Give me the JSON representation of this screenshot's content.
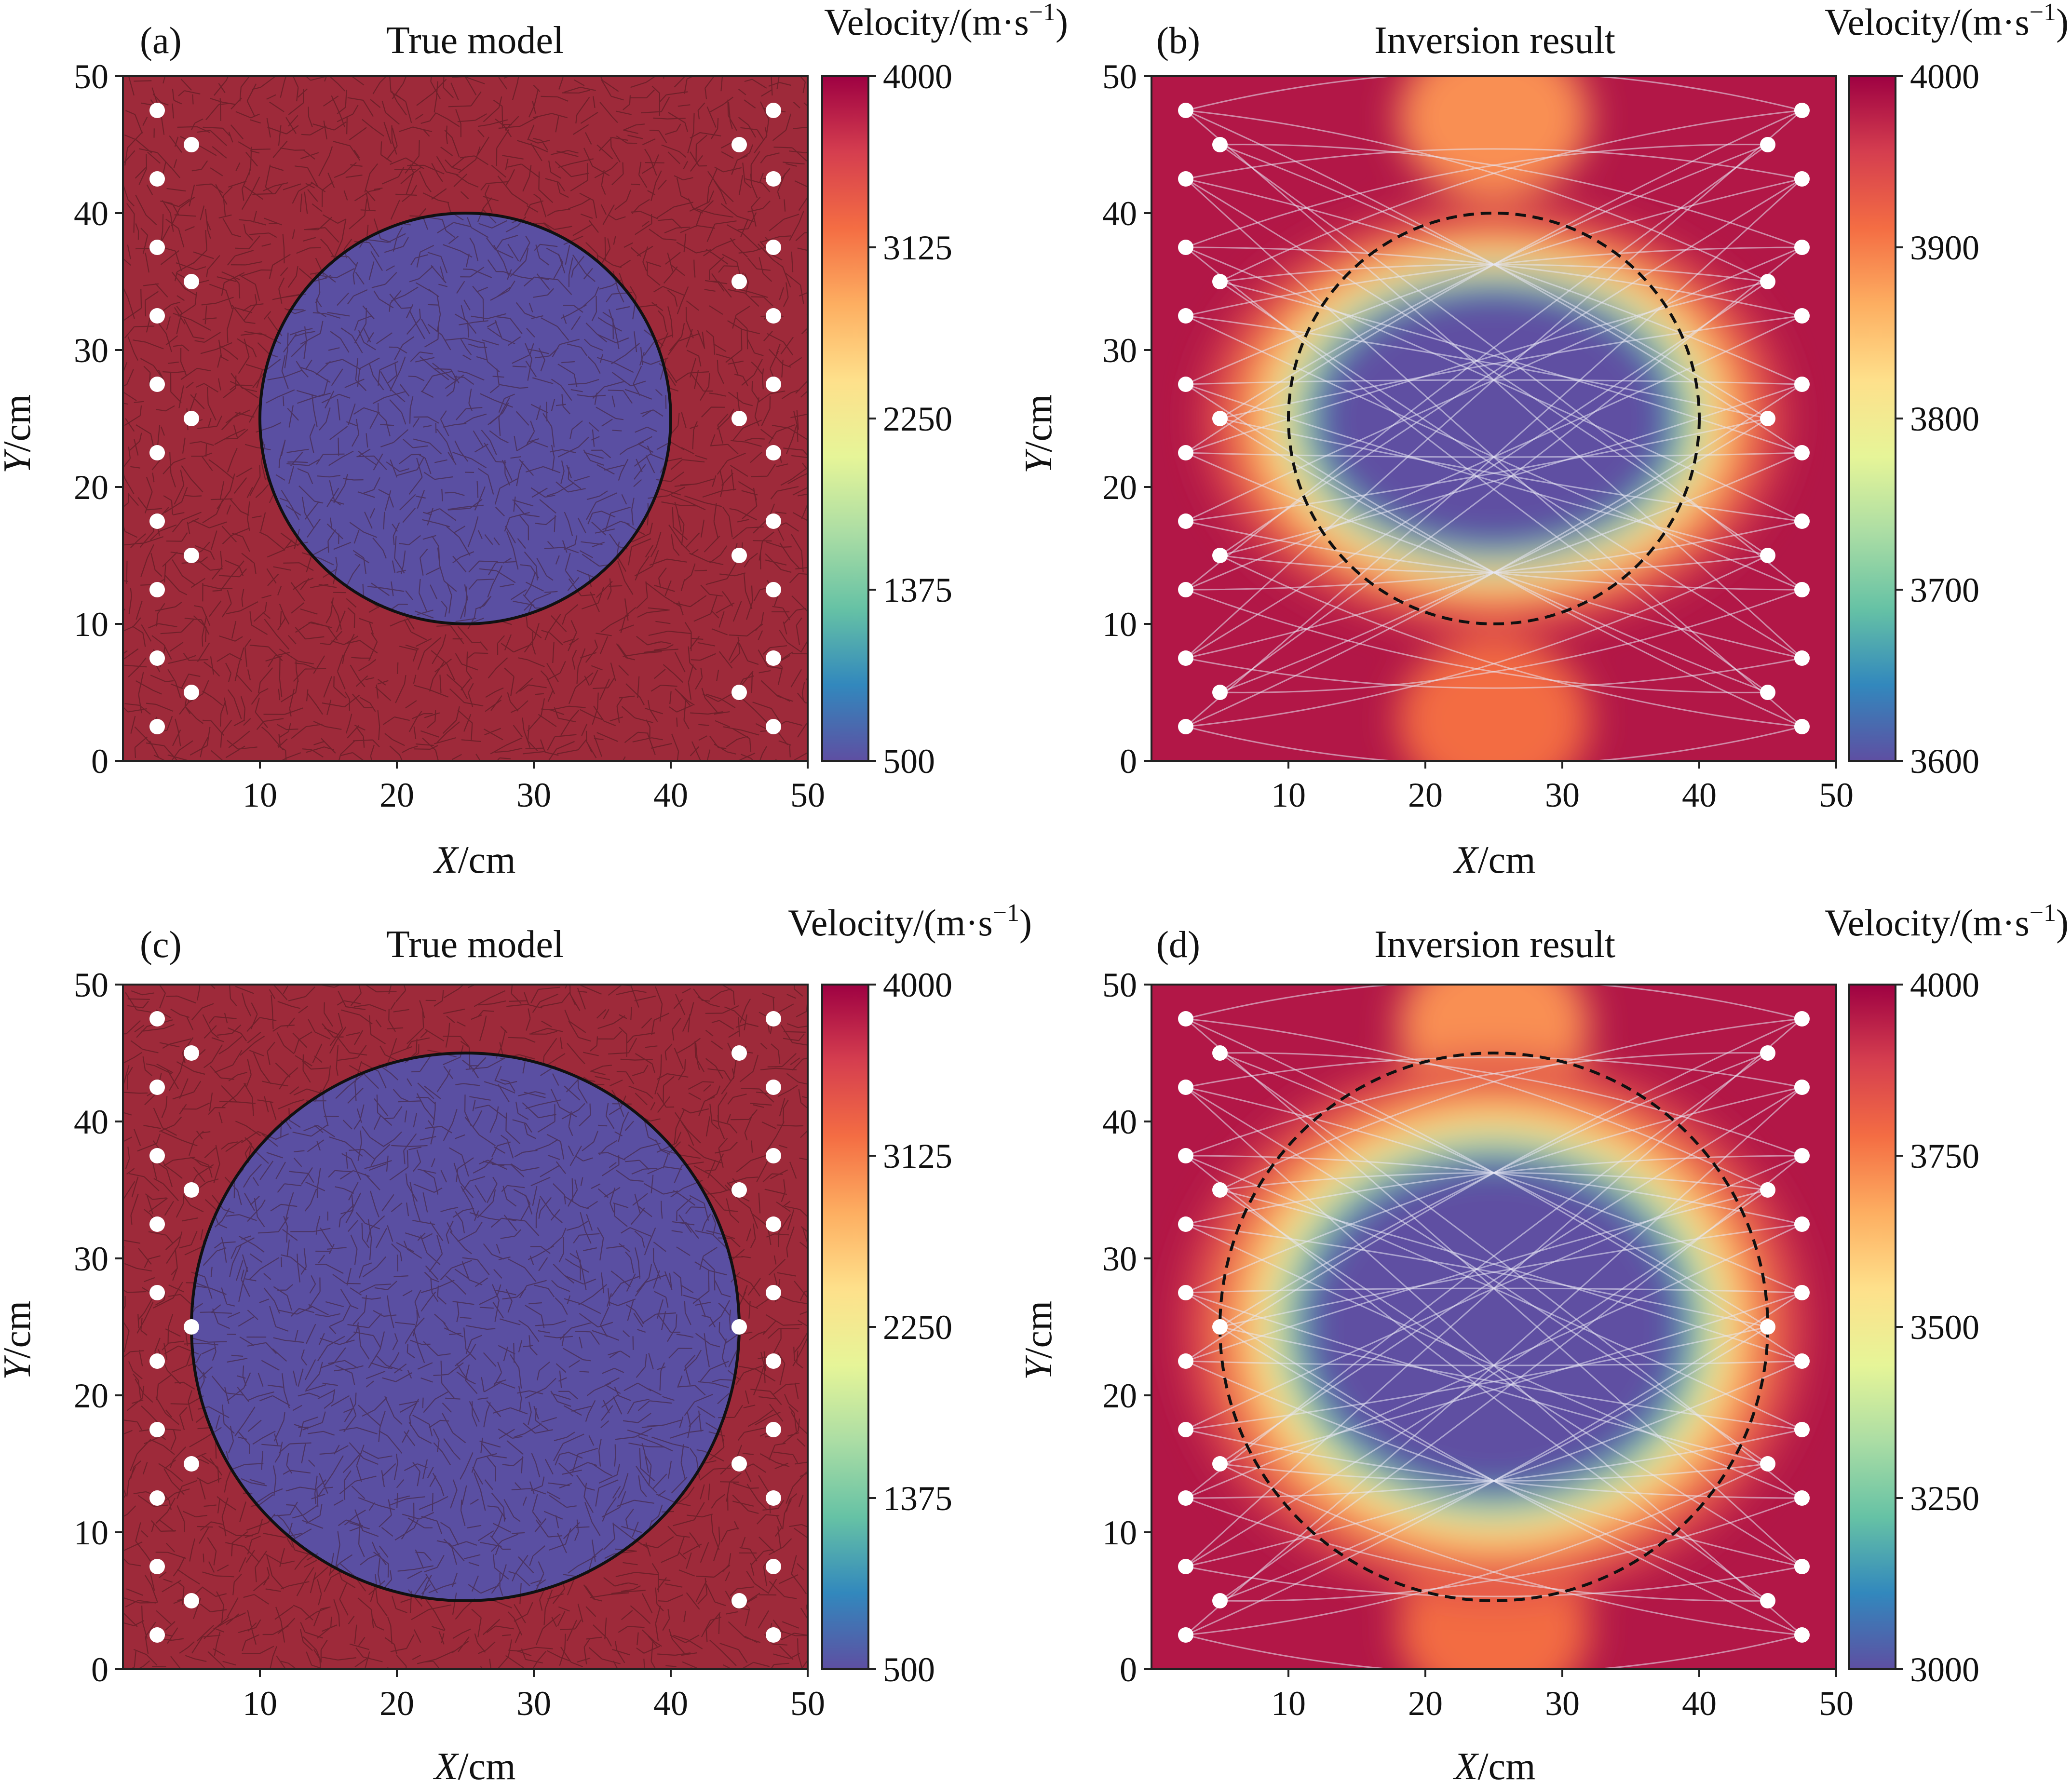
{
  "colors": {
    "background_max": "#9e2a3a",
    "inclusion_min": "#5a4fa2",
    "spectral": [
      "#5e4fa2",
      "#3288bd",
      "#66c2a5",
      "#abdda4",
      "#e6f598",
      "#fee08b",
      "#fdae61",
      "#f46d43",
      "#d53e4f",
      "#9e0142"
    ],
    "sensor": "#ffffff",
    "ray": "#e8e8f4",
    "mesh": "#3a1418",
    "outline": "#111111"
  },
  "chart_data": [
    {
      "type": "heatmap",
      "panel_label": "(a)",
      "title": "True model",
      "xlabel_italic": "X",
      "xlabel_unit": "/cm",
      "ylabel_italic": "Y",
      "ylabel_unit": "/cm",
      "xlim": [
        0,
        50
      ],
      "ylim": [
        0,
        50
      ],
      "xticks": [
        "10",
        "20",
        "30",
        "40",
        "50"
      ],
      "yticks": [
        "0",
        "10",
        "20",
        "30",
        "40",
        "50"
      ],
      "colorbar": {
        "title": "Velocity/(m·s",
        "title_sup": "−1",
        "title_close": ")",
        "range": [
          500,
          4000
        ],
        "ticks": [
          "4000",
          "3125",
          "2250",
          "1375",
          "500"
        ]
      },
      "model": "true",
      "inclusion": {
        "center_x": 25,
        "center_y": 25,
        "radius": 15,
        "velocity": 500
      },
      "background_velocity": 4000,
      "sensors_left": [
        [
          2.5,
          2.5
        ],
        [
          5,
          5
        ],
        [
          2.5,
          7.5
        ],
        [
          2.5,
          12.5
        ],
        [
          5,
          15
        ],
        [
          2.5,
          17.5
        ],
        [
          2.5,
          22.5
        ],
        [
          5,
          25
        ],
        [
          2.5,
          27.5
        ],
        [
          2.5,
          32.5
        ],
        [
          5,
          35
        ],
        [
          2.5,
          37.5
        ],
        [
          2.5,
          42.5
        ],
        [
          5,
          45
        ],
        [
          2.5,
          47.5
        ]
      ],
      "sensors_right": [
        [
          47.5,
          2.5
        ],
        [
          45,
          5
        ],
        [
          47.5,
          7.5
        ],
        [
          47.5,
          12.5
        ],
        [
          45,
          15
        ],
        [
          47.5,
          17.5
        ],
        [
          47.5,
          22.5
        ],
        [
          45,
          25
        ],
        [
          47.5,
          27.5
        ],
        [
          47.5,
          32.5
        ],
        [
          45,
          35
        ],
        [
          47.5,
          37.5
        ],
        [
          47.5,
          42.5
        ],
        [
          45,
          45
        ],
        [
          47.5,
          47.5
        ]
      ],
      "grid": false
    },
    {
      "type": "heatmap",
      "panel_label": "(b)",
      "title": "Inversion result",
      "xlabel_italic": "X",
      "xlabel_unit": "/cm",
      "ylabel_italic": "Y",
      "ylabel_unit": "/cm",
      "xlim": [
        0,
        50
      ],
      "ylim": [
        0,
        50
      ],
      "xticks": [
        "10",
        "20",
        "30",
        "40",
        "50"
      ],
      "yticks": [
        "0",
        "10",
        "20",
        "30",
        "40",
        "50"
      ],
      "colorbar": {
        "title": "Velocity/(m·s",
        "title_sup": "−1",
        "title_close": ")",
        "range": [
          3600,
          4000
        ],
        "ticks": [
          "4000",
          "3900",
          "3800",
          "3700",
          "3600"
        ]
      },
      "model": "inversion",
      "inclusion_outline": {
        "center_x": 25,
        "center_y": 25,
        "radius": 15,
        "style": "dashed"
      },
      "anomaly": {
        "center_x": 25,
        "center_y": 25,
        "radius_x": 15,
        "radius_y": 11
      },
      "sensors_left": [
        [
          2.5,
          2.5
        ],
        [
          5,
          5
        ],
        [
          2.5,
          7.5
        ],
        [
          2.5,
          12.5
        ],
        [
          5,
          15
        ],
        [
          2.5,
          17.5
        ],
        [
          2.5,
          22.5
        ],
        [
          5,
          25
        ],
        [
          2.5,
          27.5
        ],
        [
          2.5,
          32.5
        ],
        [
          5,
          35
        ],
        [
          2.5,
          37.5
        ],
        [
          2.5,
          42.5
        ],
        [
          5,
          45
        ],
        [
          2.5,
          47.5
        ]
      ],
      "sensors_right": [
        [
          47.5,
          2.5
        ],
        [
          45,
          5
        ],
        [
          47.5,
          7.5
        ],
        [
          47.5,
          12.5
        ],
        [
          45,
          15
        ],
        [
          47.5,
          17.5
        ],
        [
          47.5,
          22.5
        ],
        [
          45,
          25
        ],
        [
          47.5,
          27.5
        ],
        [
          47.5,
          32.5
        ],
        [
          45,
          35
        ],
        [
          47.5,
          37.5
        ],
        [
          47.5,
          42.5
        ],
        [
          45,
          45
        ],
        [
          47.5,
          47.5
        ]
      ],
      "grid": false
    },
    {
      "type": "heatmap",
      "panel_label": "(c)",
      "title": "True model",
      "xlabel_italic": "X",
      "xlabel_unit": "/cm",
      "ylabel_italic": "Y",
      "ylabel_unit": "/cm",
      "xlim": [
        0,
        50
      ],
      "ylim": [
        0,
        50
      ],
      "xticks": [
        "10",
        "20",
        "30",
        "40",
        "50"
      ],
      "yticks": [
        "0",
        "10",
        "20",
        "30",
        "40",
        "50"
      ],
      "colorbar": {
        "title": "Velocity/(m·s",
        "title_sup": "−1",
        "title_close": ")",
        "range": [
          500,
          4000
        ],
        "ticks": [
          "4000",
          "3125",
          "2250",
          "1375",
          "500"
        ]
      },
      "model": "true",
      "inclusion": {
        "center_x": 25,
        "center_y": 25,
        "radius": 20,
        "velocity": 500
      },
      "background_velocity": 4000,
      "sensors_left": [
        [
          2.5,
          2.5
        ],
        [
          5,
          5
        ],
        [
          2.5,
          7.5
        ],
        [
          2.5,
          12.5
        ],
        [
          5,
          15
        ],
        [
          2.5,
          17.5
        ],
        [
          2.5,
          22.5
        ],
        [
          5,
          25
        ],
        [
          2.5,
          27.5
        ],
        [
          2.5,
          32.5
        ],
        [
          5,
          35
        ],
        [
          2.5,
          37.5
        ],
        [
          2.5,
          42.5
        ],
        [
          5,
          45
        ],
        [
          2.5,
          47.5
        ]
      ],
      "sensors_right": [
        [
          47.5,
          2.5
        ],
        [
          45,
          5
        ],
        [
          47.5,
          7.5
        ],
        [
          47.5,
          12.5
        ],
        [
          45,
          15
        ],
        [
          47.5,
          17.5
        ],
        [
          47.5,
          22.5
        ],
        [
          45,
          25
        ],
        [
          47.5,
          27.5
        ],
        [
          47.5,
          32.5
        ],
        [
          45,
          35
        ],
        [
          47.5,
          37.5
        ],
        [
          47.5,
          42.5
        ],
        [
          45,
          45
        ],
        [
          47.5,
          47.5
        ]
      ],
      "grid": false
    },
    {
      "type": "heatmap",
      "panel_label": "(d)",
      "title": "Inversion result",
      "xlabel_italic": "X",
      "xlabel_unit": "/cm",
      "ylabel_italic": "Y",
      "ylabel_unit": "/cm",
      "xlim": [
        0,
        50
      ],
      "ylim": [
        0,
        50
      ],
      "xticks": [
        "10",
        "20",
        "30",
        "40",
        "50"
      ],
      "yticks": [
        "0",
        "10",
        "20",
        "30",
        "40",
        "50"
      ],
      "colorbar": {
        "title": "Velocity/(m·s",
        "title_sup": "−1",
        "title_close": ")",
        "range": [
          3000,
          4000
        ],
        "ticks": [
          "4000",
          "3750",
          "3500",
          "3250",
          "3000"
        ]
      },
      "model": "inversion",
      "inclusion_outline": {
        "center_x": 25,
        "center_y": 25,
        "radius": 20,
        "style": "dashed"
      },
      "anomaly": {
        "center_x": 25,
        "center_y": 25,
        "radius_x": 16,
        "radius_y": 14
      },
      "sensors_left": [
        [
          2.5,
          2.5
        ],
        [
          5,
          5
        ],
        [
          2.5,
          7.5
        ],
        [
          2.5,
          12.5
        ],
        [
          5,
          15
        ],
        [
          2.5,
          17.5
        ],
        [
          2.5,
          22.5
        ],
        [
          5,
          25
        ],
        [
          2.5,
          27.5
        ],
        [
          2.5,
          32.5
        ],
        [
          5,
          35
        ],
        [
          2.5,
          37.5
        ],
        [
          2.5,
          42.5
        ],
        [
          5,
          45
        ],
        [
          2.5,
          47.5
        ]
      ],
      "sensors_right": [
        [
          47.5,
          2.5
        ],
        [
          45,
          5
        ],
        [
          47.5,
          7.5
        ],
        [
          47.5,
          12.5
        ],
        [
          45,
          15
        ],
        [
          47.5,
          17.5
        ],
        [
          47.5,
          22.5
        ],
        [
          45,
          25
        ],
        [
          47.5,
          27.5
        ],
        [
          47.5,
          32.5
        ],
        [
          45,
          35
        ],
        [
          47.5,
          37.5
        ],
        [
          47.5,
          42.5
        ],
        [
          45,
          45
        ],
        [
          47.5,
          47.5
        ]
      ],
      "grid": false
    }
  ]
}
